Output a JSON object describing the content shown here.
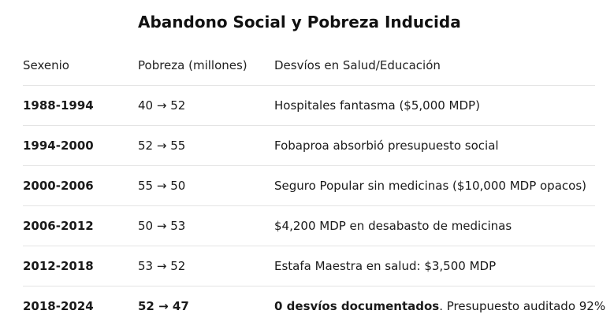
{
  "title": "Abandono Social y Pobreza Inducida",
  "table": {
    "headers": [
      "Sexenio",
      "Pobreza (millones)",
      "Desvíos en Salud/Educación"
    ],
    "rows": [
      {
        "sexenio": "1988-1994",
        "pobreza": "40 → 52",
        "desvios": "Hospitales fantasma ($5,000 MDP)"
      },
      {
        "sexenio": "1994-2000",
        "pobreza": "52 → 55",
        "desvios": "Fobaproa absorbió presupuesto social"
      },
      {
        "sexenio": "2000-2006",
        "pobreza": "55 → 50",
        "desvios": "Seguro Popular sin medicinas ($10,000 MDP opacos)"
      },
      {
        "sexenio": "2006-2012",
        "pobreza": "50 → 53",
        "desvios": "$4,200 MDP en desabasto de medicinas"
      },
      {
        "sexenio": "2012-2018",
        "pobreza": "53 → 52",
        "desvios": "Estafa Maestra en salud: $3,500 MDP"
      },
      {
        "sexenio": "2018-2024",
        "pobreza": "52 → 47",
        "desvios_bold": "0 desvíos documentados",
        "desvios_rest": ". Presupuesto auditado 92%"
      }
    ]
  }
}
